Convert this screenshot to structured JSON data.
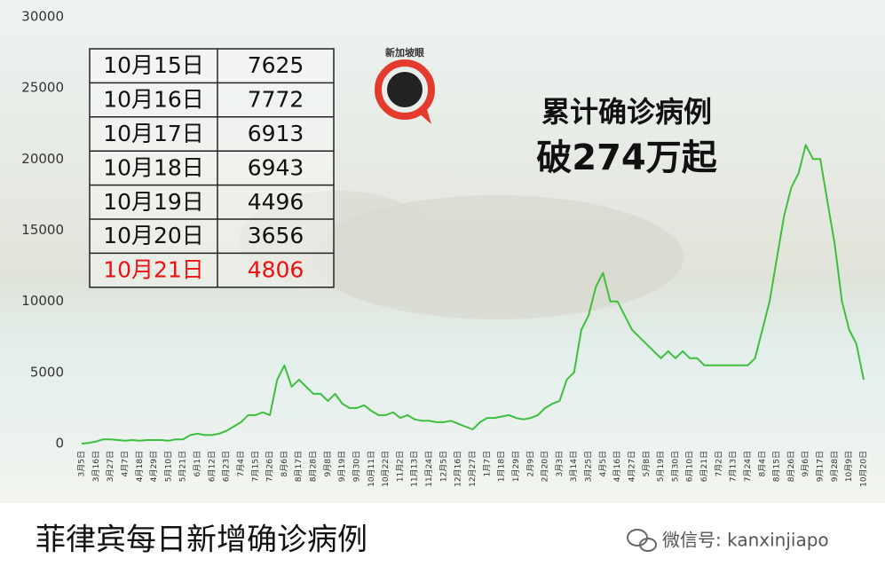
{
  "chart_data": {
    "type": "line",
    "title": "菲律宾每日新增确诊病例",
    "categories": [
      "3月5日",
      null,
      "3月16日",
      null,
      "3月27日",
      null,
      "4月7日",
      null,
      "4月18日",
      null,
      "4月29日",
      null,
      "5月10日",
      null,
      "5月21日",
      null,
      "6月1日",
      null,
      "6月12日",
      null,
      "6月23日",
      null,
      "7月4日",
      null,
      "7月15日",
      null,
      "7月26日",
      null,
      "8月6日",
      null,
      "8月17日",
      null,
      "8月28日",
      null,
      "9月8日",
      null,
      "9月19日",
      null,
      "9月30日",
      null,
      "10月11日",
      null,
      "10月22日",
      null,
      "11月2日",
      null,
      "11月13日",
      null,
      "11月24日",
      null,
      "12月5日",
      null,
      "12月16日",
      null,
      "12月27日",
      null,
      "1月7日",
      null,
      "1月18日",
      null,
      "1月29日",
      null,
      "2月9日",
      null,
      "2月20日",
      null,
      "3月3日",
      null,
      "3月14日",
      null,
      "3月25日",
      null,
      "4月5日",
      null,
      "4月16日",
      null,
      "4月27日",
      null,
      "5月8日",
      null,
      "5月19日",
      null,
      "5月30日",
      null,
      "6月10日",
      null,
      "6月21日",
      null,
      "7月2日",
      null,
      "7月13日",
      null,
      "7月24日",
      null,
      "8月4日",
      null,
      "8月15日",
      null,
      "8月26日",
      null,
      "9月6日",
      null,
      "9月17日",
      null,
      "9月28日",
      null,
      "10月9日",
      null,
      "10月20日"
    ],
    "values": [
      0,
      50,
      150,
      300,
      300,
      250,
      200,
      250,
      200,
      250,
      250,
      250,
      200,
      300,
      300,
      600,
      700,
      600,
      600,
      700,
      900,
      1200,
      1500,
      2000,
      2000,
      2200,
      2000,
      4500,
      5500,
      4000,
      4500,
      4000,
      3500,
      3500,
      3000,
      3500,
      2800,
      2500,
      2500,
      2700,
      2300,
      2000,
      2000,
      2200,
      1800,
      2000,
      1700,
      1600,
      1600,
      1500,
      1500,
      1600,
      1400,
      1200,
      1000,
      1500,
      1800,
      1800,
      1900,
      2000,
      1800,
      1700,
      1800,
      2000,
      2500,
      2800,
      3000,
      4500,
      5000,
      8000,
      9000,
      11000,
      12000,
      10000,
      10000,
      9000,
      8000,
      7500,
      7000,
      6500,
      6000,
      6500,
      6000,
      6500,
      6000,
      6000,
      5500,
      5500,
      5500,
      5500,
      5500,
      5500,
      5500,
      6000,
      8000,
      10000,
      13000,
      16000,
      18000,
      19000,
      21000,
      20000,
      20000,
      17000,
      14000,
      10000,
      8000,
      7000,
      4500
    ],
    "color": "#3dbf3d",
    "ylim": [
      0,
      30000
    ],
    "yticks": [
      0,
      5000,
      10000,
      15000,
      20000,
      25000,
      30000
    ]
  },
  "table": {
    "rows": [
      [
        "10月15日",
        7625
      ],
      [
        "10月16日",
        7772
      ],
      [
        "10月17日",
        6913
      ],
      [
        "10月18日",
        6943
      ],
      [
        "10月19日",
        4496
      ],
      [
        "10月20日",
        3656
      ],
      [
        "10月21日",
        4806
      ]
    ]
  },
  "annotation": [
    "累计确诊病例",
    "破274万起"
  ],
  "logo": "新加坡眼",
  "wechat": "微信号: kanxinjiapo"
}
